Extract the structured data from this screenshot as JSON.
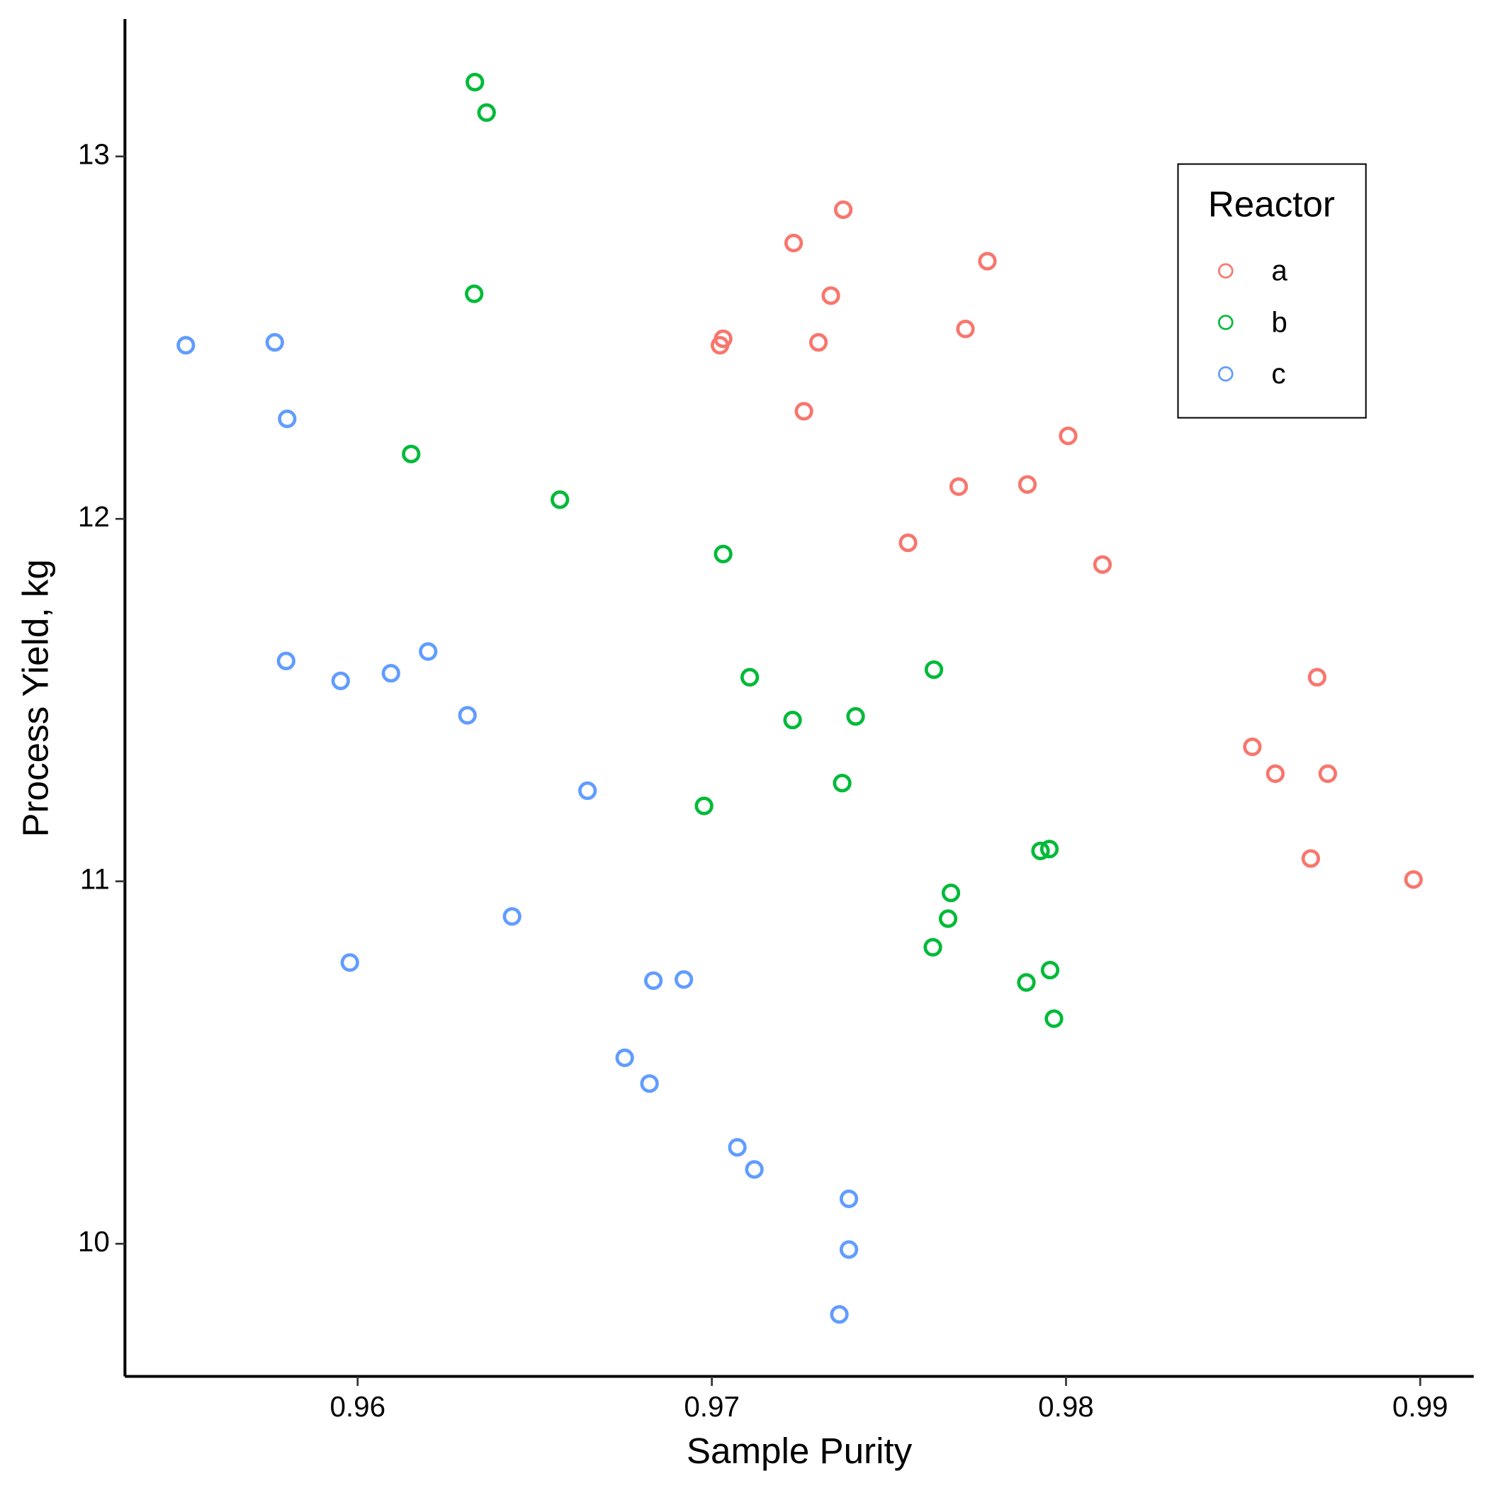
{
  "chart_data": {
    "type": "scatter",
    "x_label": "Sample Purity",
    "y_label": "Process Yield, kg",
    "legend_title": "Reactor",
    "legend_position": "top-right",
    "xlim": [
      0.95343,
      0.99151
    ],
    "ylim": [
      9.634,
      13.379
    ],
    "xticks": [
      0.96,
      0.97,
      0.98,
      0.99
    ],
    "yticks": [
      10,
      11,
      12,
      13
    ],
    "series": [
      {
        "name": "a",
        "color": "#F8766D",
        "x": [
          0.97371,
          0.97231,
          0.97778,
          0.97336,
          0.97716,
          0.97032,
          0.97023,
          0.97301,
          0.9726,
          0.98006,
          0.97697,
          0.97891,
          0.97554,
          0.98103,
          0.98709,
          0.98526,
          0.98591,
          0.98739,
          0.98691,
          0.98981
        ],
        "values": [
          12.853,
          12.761,
          12.711,
          12.616,
          12.524,
          12.497,
          12.479,
          12.487,
          12.297,
          12.229,
          12.089,
          12.095,
          11.934,
          11.874,
          11.563,
          11.371,
          11.297,
          11.297,
          11.063,
          11.005
        ]
      },
      {
        "name": "b",
        "color": "#00BA38",
        "x": [
          0.96331,
          0.96364,
          0.96329,
          0.96151,
          0.96571,
          0.97032,
          0.97107,
          0.97627,
          0.97228,
          0.97406,
          0.97368,
          0.96978,
          0.97928,
          0.97953,
          0.97675,
          0.97667,
          0.97624,
          0.97955,
          0.97888,
          0.97966
        ],
        "values": [
          13.205,
          13.121,
          12.621,
          12.179,
          12.053,
          11.903,
          11.563,
          11.584,
          11.445,
          11.455,
          11.271,
          11.208,
          11.084,
          11.089,
          10.968,
          10.897,
          10.818,
          10.755,
          10.721,
          10.621
        ]
      },
      {
        "name": "c",
        "color": "#619CFF",
        "x": [
          0.95515,
          0.95766,
          0.95801,
          0.95798,
          0.95952,
          0.96094,
          0.96199,
          0.9631,
          0.96649,
          0.96436,
          0.95978,
          0.96835,
          0.96921,
          0.96754,
          0.96824,
          0.97072,
          0.9712,
          0.97387,
          0.97387,
          0.9736
        ],
        "values": [
          12.479,
          12.487,
          12.276,
          11.608,
          11.553,
          11.574,
          11.634,
          11.458,
          11.25,
          10.903,
          10.776,
          10.726,
          10.729,
          10.513,
          10.442,
          10.266,
          10.205,
          10.124,
          9.984,
          9.805
        ]
      }
    ]
  }
}
